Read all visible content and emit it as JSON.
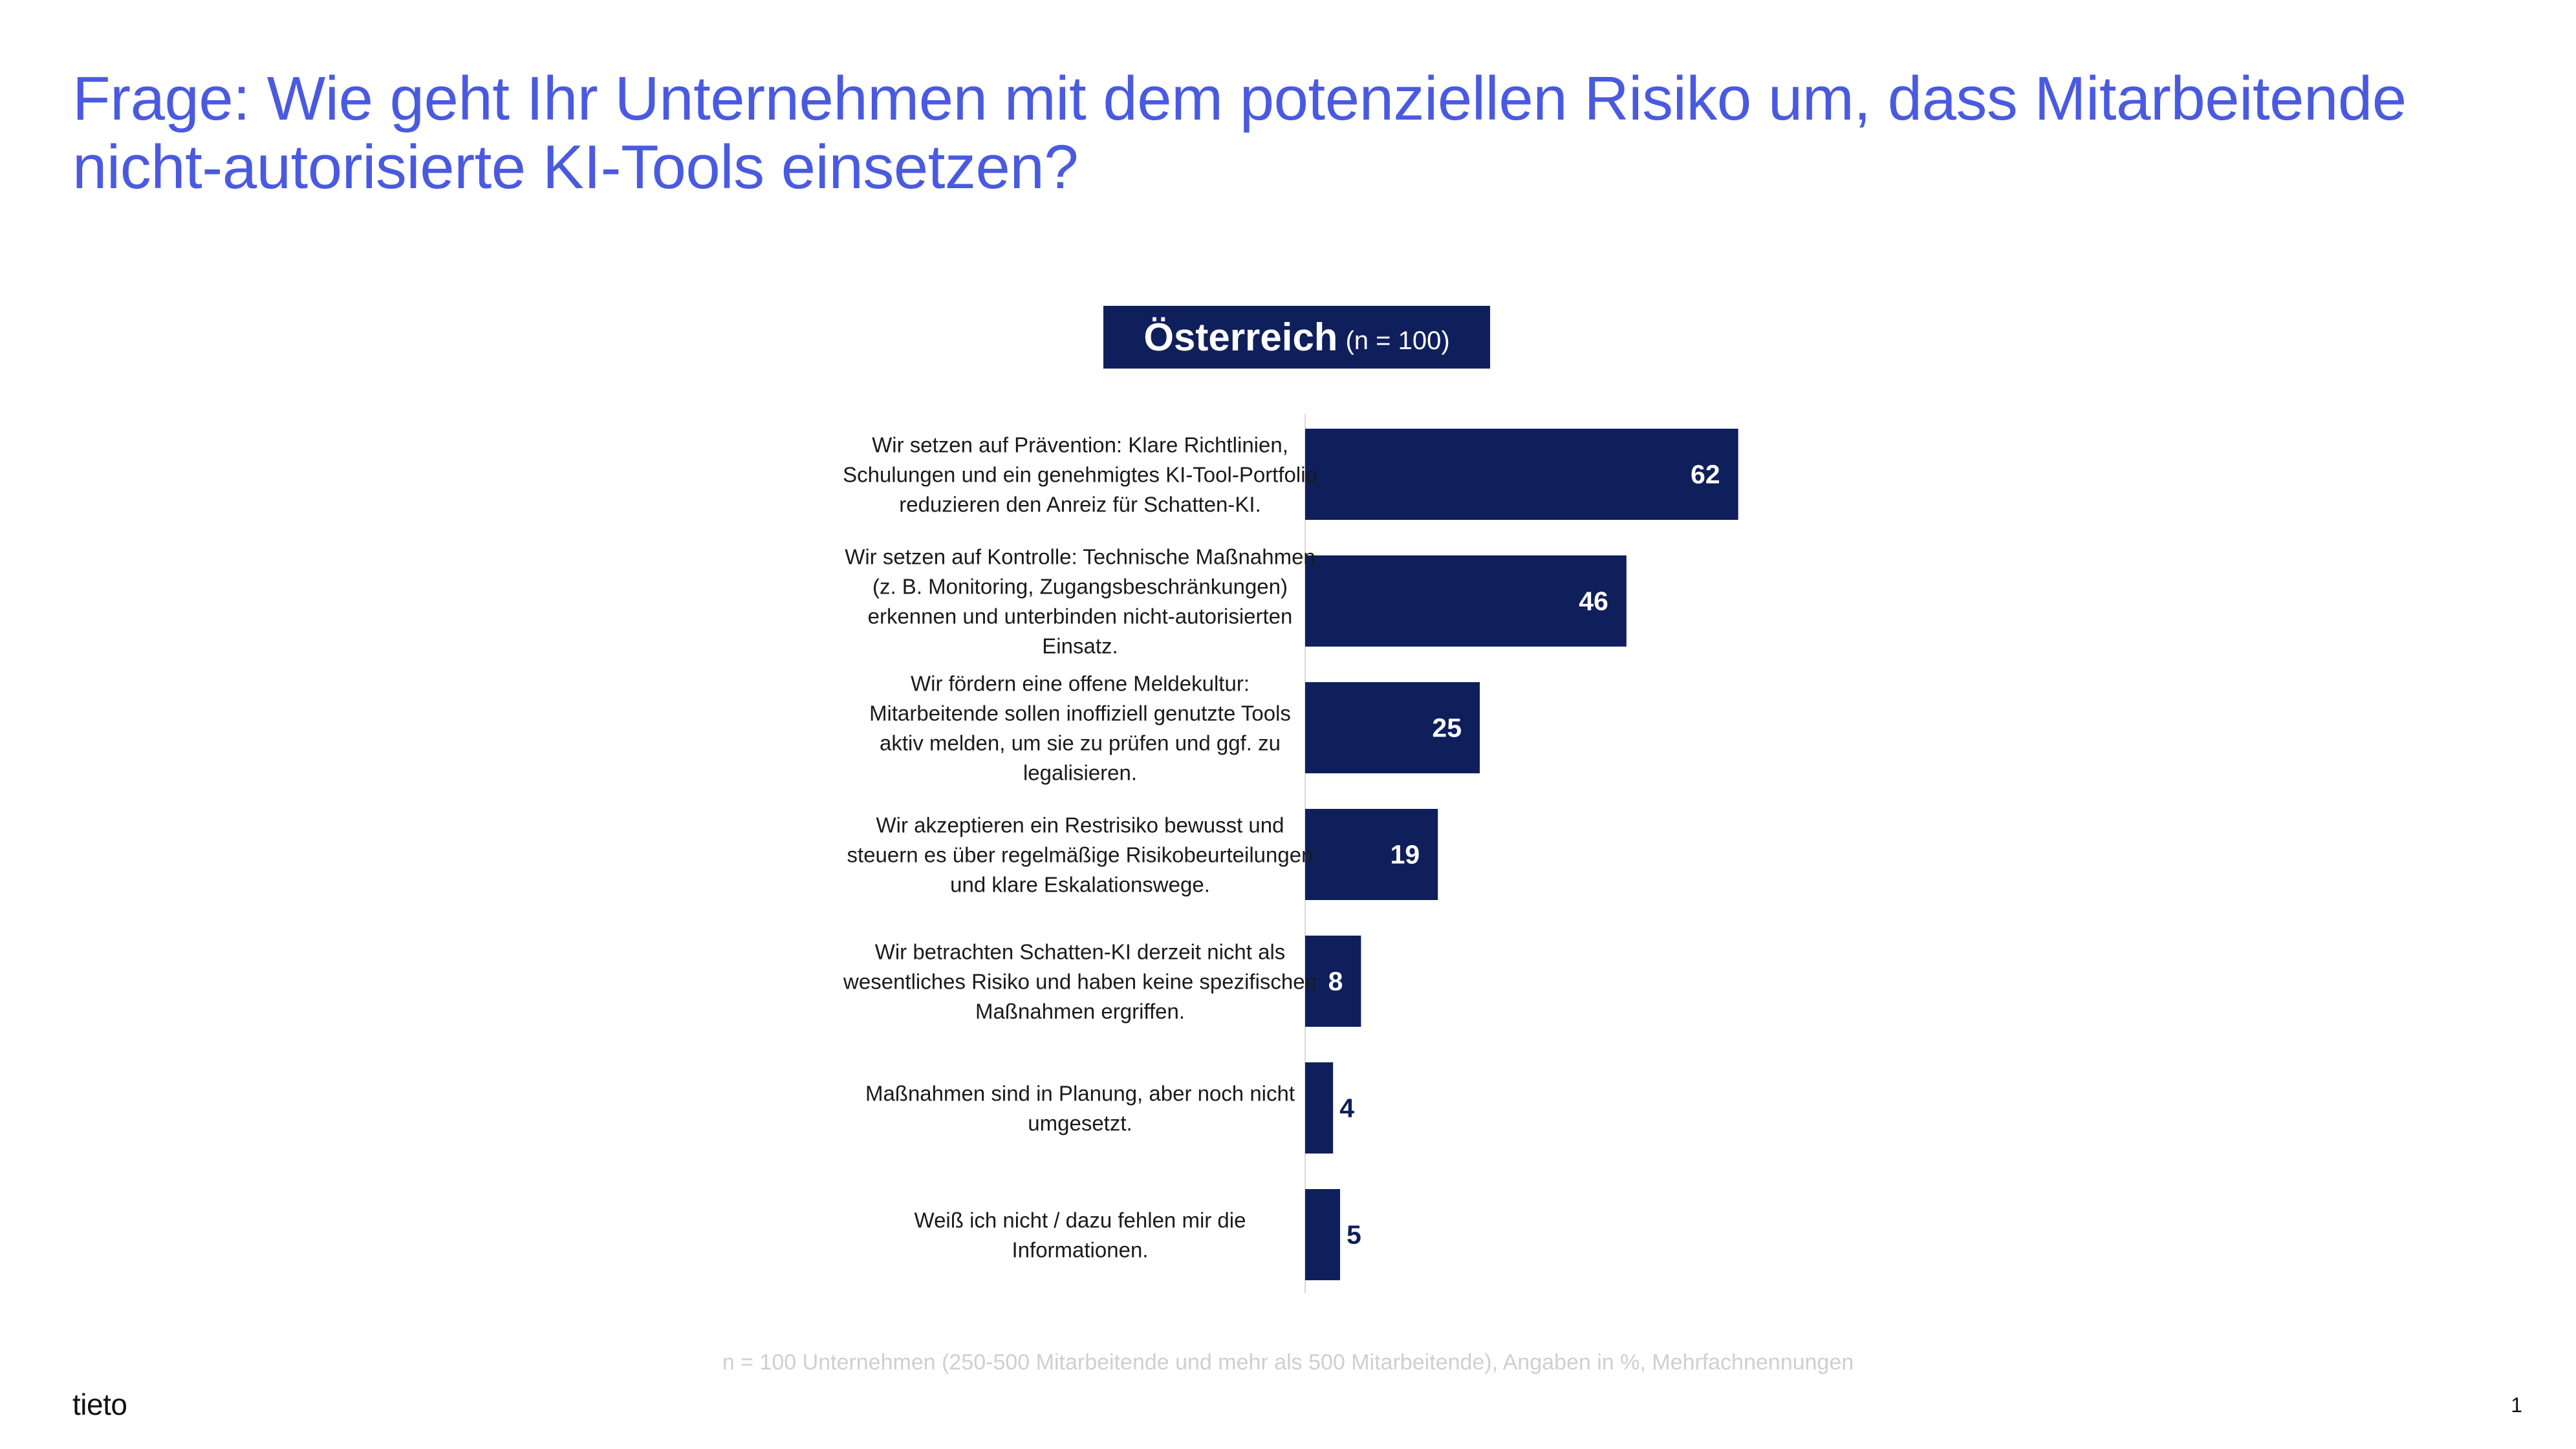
{
  "title": "Frage: Wie geht Ihr Unternehmen mit dem potenziellen Risiko um, dass Mitarbeitende nicht-autorisierte KI-Tools einsetzen?",
  "badge": {
    "country": "Österreich",
    "sample": "(n = 100)"
  },
  "footnote": "n = 100 Unternehmen (250-500 Mitarbeitende und mehr als 500 Mitarbeitende), Angaben in %, Mehrfachnennungen",
  "logo_text": "tieto",
  "page_number": "1",
  "colors": {
    "title": "#4a5ae0",
    "bar": "#0f1f5c",
    "footnote": "#cfcfcf"
  },
  "chart_data": {
    "type": "bar",
    "orientation": "horizontal",
    "title": "",
    "xlabel": "",
    "ylabel": "",
    "xlim": [
      0,
      100
    ],
    "grid": false,
    "legend": "none",
    "categories": [
      [
        "Wir setzen auf Prävention: Klare Richtlinien,",
        "Schulungen und ein genehmigtes KI-Tool-Portfolio",
        "reduzieren den Anreiz für Schatten-KI."
      ],
      [
        "Wir setzen auf Kontrolle: Technische Maßnahmen",
        "(z. B. Monitoring, Zugangsbeschränkungen)",
        "erkennen und unterbinden nicht-autorisierten",
        "Einsatz."
      ],
      [
        "Wir fördern eine offene Meldekultur:",
        "Mitarbeitende sollen inoffiziell genutzte Tools",
        "aktiv melden, um sie zu prüfen und ggf. zu",
        "legalisieren."
      ],
      [
        "Wir akzeptieren ein Restrisiko bewusst und",
        "steuern es über regelmäßige Risikobeurteilungen",
        "und klare Eskalationswege."
      ],
      [
        "Wir betrachten Schatten-KI derzeit nicht als",
        "wesentliches Risiko und haben keine spezifischen",
        "Maßnahmen ergriffen."
      ],
      [
        "Maßnahmen sind in Planung, aber noch nicht",
        "umgesetzt."
      ],
      [
        "Weiß ich nicht / dazu fehlen mir die",
        "Informationen."
      ]
    ],
    "values": [
      62,
      46,
      25,
      19,
      8,
      4,
      5
    ]
  }
}
